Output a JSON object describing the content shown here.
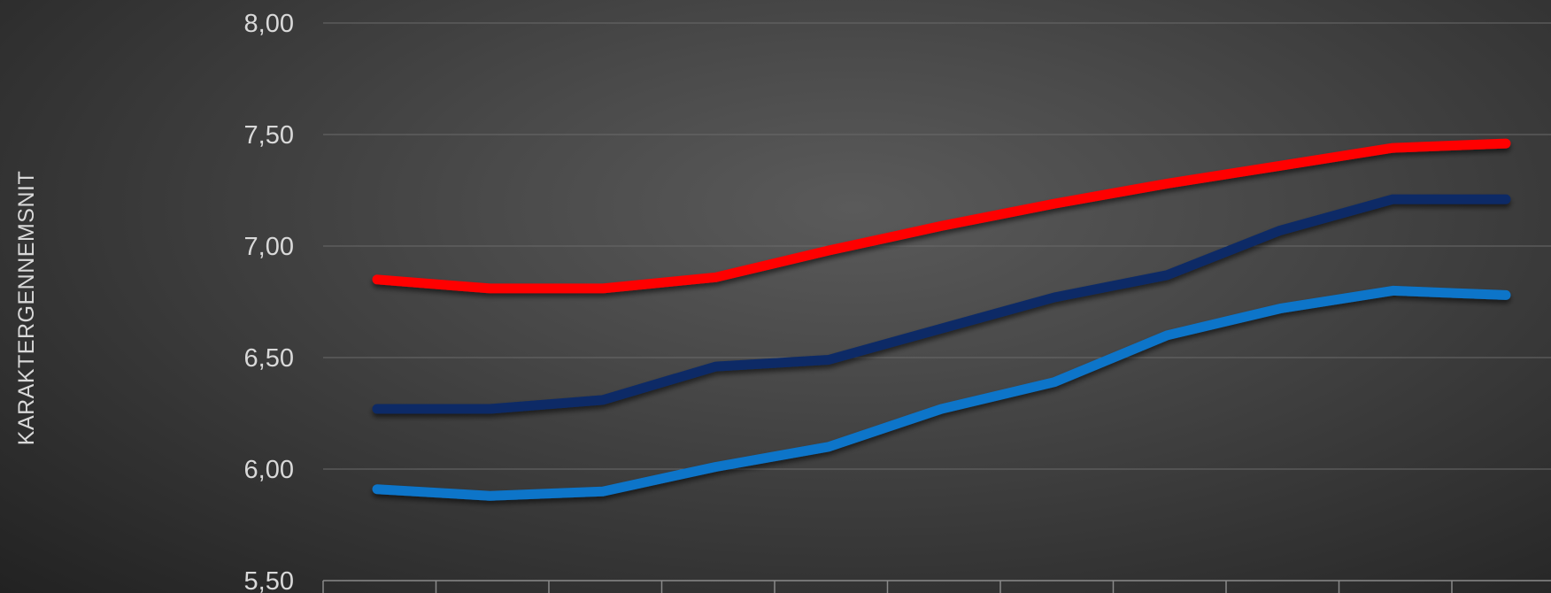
{
  "chart_data": {
    "type": "line",
    "title": "",
    "xlabel": "",
    "ylabel": "KARAKTERGENNEMSNIT",
    "ylim": [
      5.5,
      8.0
    ],
    "yticks": [
      "8,00",
      "7,50",
      "7,00",
      "6,50",
      "6,00",
      "5,50"
    ],
    "ytick_values": [
      8.0,
      7.5,
      7.0,
      6.5,
      6.0,
      5.5
    ],
    "grid": true,
    "legend": "none",
    "x": [
      1,
      2,
      3,
      4,
      5,
      6,
      7,
      8,
      9,
      10,
      11
    ],
    "series": [
      {
        "color": "#ff0000",
        "values": [
          6.85,
          6.81,
          6.81,
          6.86,
          6.98,
          7.09,
          7.19,
          7.28,
          7.36,
          7.44,
          7.46
        ]
      },
      {
        "color": "#0b2a66",
        "values": [
          6.27,
          6.27,
          6.31,
          6.46,
          6.49,
          6.63,
          6.77,
          6.87,
          7.07,
          7.21,
          7.21
        ]
      },
      {
        "color": "#0b74c9",
        "values": [
          5.91,
          5.88,
          5.9,
          6.01,
          6.1,
          6.27,
          6.39,
          6.6,
          6.72,
          6.8,
          6.78
        ]
      }
    ]
  }
}
